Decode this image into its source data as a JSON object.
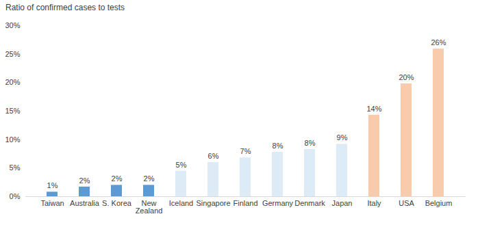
{
  "chart_data": {
    "type": "bar",
    "y_label": "Ratio of confirmed cases to tests",
    "categories": [
      "Taiwan",
      "Australia",
      "S. Korea",
      "New Zealand",
      "Iceland",
      "Singapore",
      "Finland",
      "Germany",
      "Denmark",
      "Japan",
      "Italy",
      "USA",
      "Belgium"
    ],
    "values": [
      0.8,
      1.7,
      2.0,
      2.0,
      4.5,
      6.0,
      6.8,
      7.8,
      8.3,
      9.2,
      14.3,
      19.8,
      25.9
    ],
    "value_labels": [
      "1%",
      "2%",
      "2%",
      "2%",
      "5%",
      "6%",
      "7%",
      "8%",
      "8%",
      "9%",
      "14%",
      "20%",
      "26%"
    ],
    "colors": [
      "#5b9bd5",
      "#5b9bd5",
      "#5b9bd5",
      "#5b9bd5",
      "#ddebf7",
      "#ddebf7",
      "#ddebf7",
      "#ddebf7",
      "#ddebf7",
      "#ddebf7",
      "#f8cbad",
      "#f8cbad",
      "#f8cbad"
    ],
    "ylim": [
      0,
      30
    ],
    "yticks": [
      {
        "value": 0,
        "label": "0%"
      },
      {
        "value": 5,
        "label": "5%"
      },
      {
        "value": 10,
        "label": "10%"
      },
      {
        "value": 15,
        "label": "15%"
      },
      {
        "value": 20,
        "label": "20%"
      },
      {
        "value": 25,
        "label": "25%"
      },
      {
        "value": 30,
        "label": "30%"
      }
    ],
    "grid": false,
    "data_labels": true
  }
}
